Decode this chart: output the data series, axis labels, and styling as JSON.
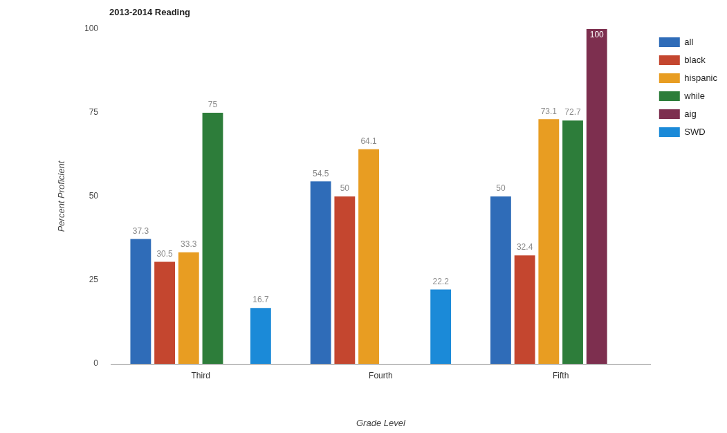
{
  "chart_data": {
    "type": "bar",
    "title": "2013-2014 Reading",
    "xlabel": "Grade Level",
    "ylabel": "Percent Proficient",
    "categories": [
      "Third",
      "Fourth",
      "Fifth"
    ],
    "series": [
      {
        "name": "all",
        "color": "#2f6cb8",
        "values": [
          37.3,
          54.5,
          50
        ]
      },
      {
        "name": "black",
        "color": "#c4462f",
        "values": [
          30.5,
          50,
          32.4
        ]
      },
      {
        "name": "hispanic",
        "color": "#e89d22",
        "values": [
          33.3,
          64.1,
          73.1
        ]
      },
      {
        "name": "while",
        "color": "#2d7d3a",
        "values": [
          75,
          null,
          72.7
        ]
      },
      {
        "name": "aig",
        "color": "#7d2f4f",
        "values": [
          null,
          null,
          100
        ]
      },
      {
        "name": "SWD",
        "color": "#1b8ad8",
        "values": [
          16.7,
          22.2,
          null
        ]
      }
    ],
    "ylim": [
      0,
      100
    ],
    "yticks": [
      0,
      25,
      50,
      75,
      100
    ],
    "grid": false,
    "legend": "top right",
    "data_labels": true
  }
}
